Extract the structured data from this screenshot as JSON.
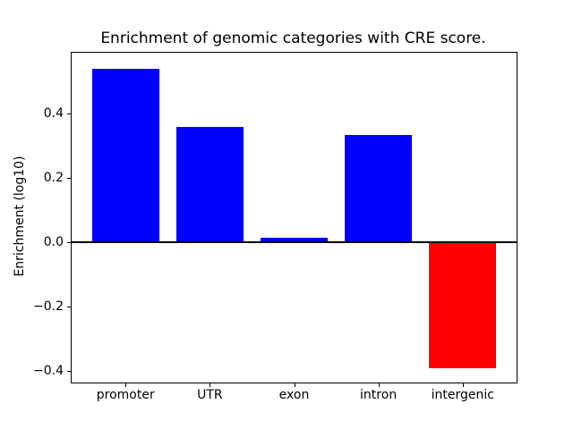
{
  "figure": {
    "background": "#ffffff"
  },
  "chart_data": {
    "type": "bar",
    "title": "Enrichment of genomic categories with CRE score.",
    "xlabel": "",
    "ylabel": "Enrichment (log10)",
    "categories": [
      "promoter",
      "UTR",
      "exon",
      "intron",
      "intergenic"
    ],
    "values": [
      0.54,
      0.36,
      0.015,
      0.335,
      -0.39
    ],
    "bar_colors": [
      "#0000ff",
      "#0000ff",
      "#0000ff",
      "#0000ff",
      "#ff0000"
    ],
    "positive_color": "#0000ff",
    "negative_color": "#ff0000",
    "yticks": [
      {
        "value": -0.4,
        "label": "−0.4"
      },
      {
        "value": -0.2,
        "label": "−0.2"
      },
      {
        "value": 0.0,
        "label": "0.0"
      },
      {
        "value": 0.2,
        "label": "0.2"
      },
      {
        "value": 0.4,
        "label": "0.4"
      }
    ],
    "ylim": [
      -0.435,
      0.59
    ],
    "xlim": [
      -0.64,
      4.64
    ],
    "bar_width": 0.8,
    "grid": false,
    "zero_line": true,
    "legend": false,
    "axis_color": "#000000",
    "text_color": "#000000"
  }
}
